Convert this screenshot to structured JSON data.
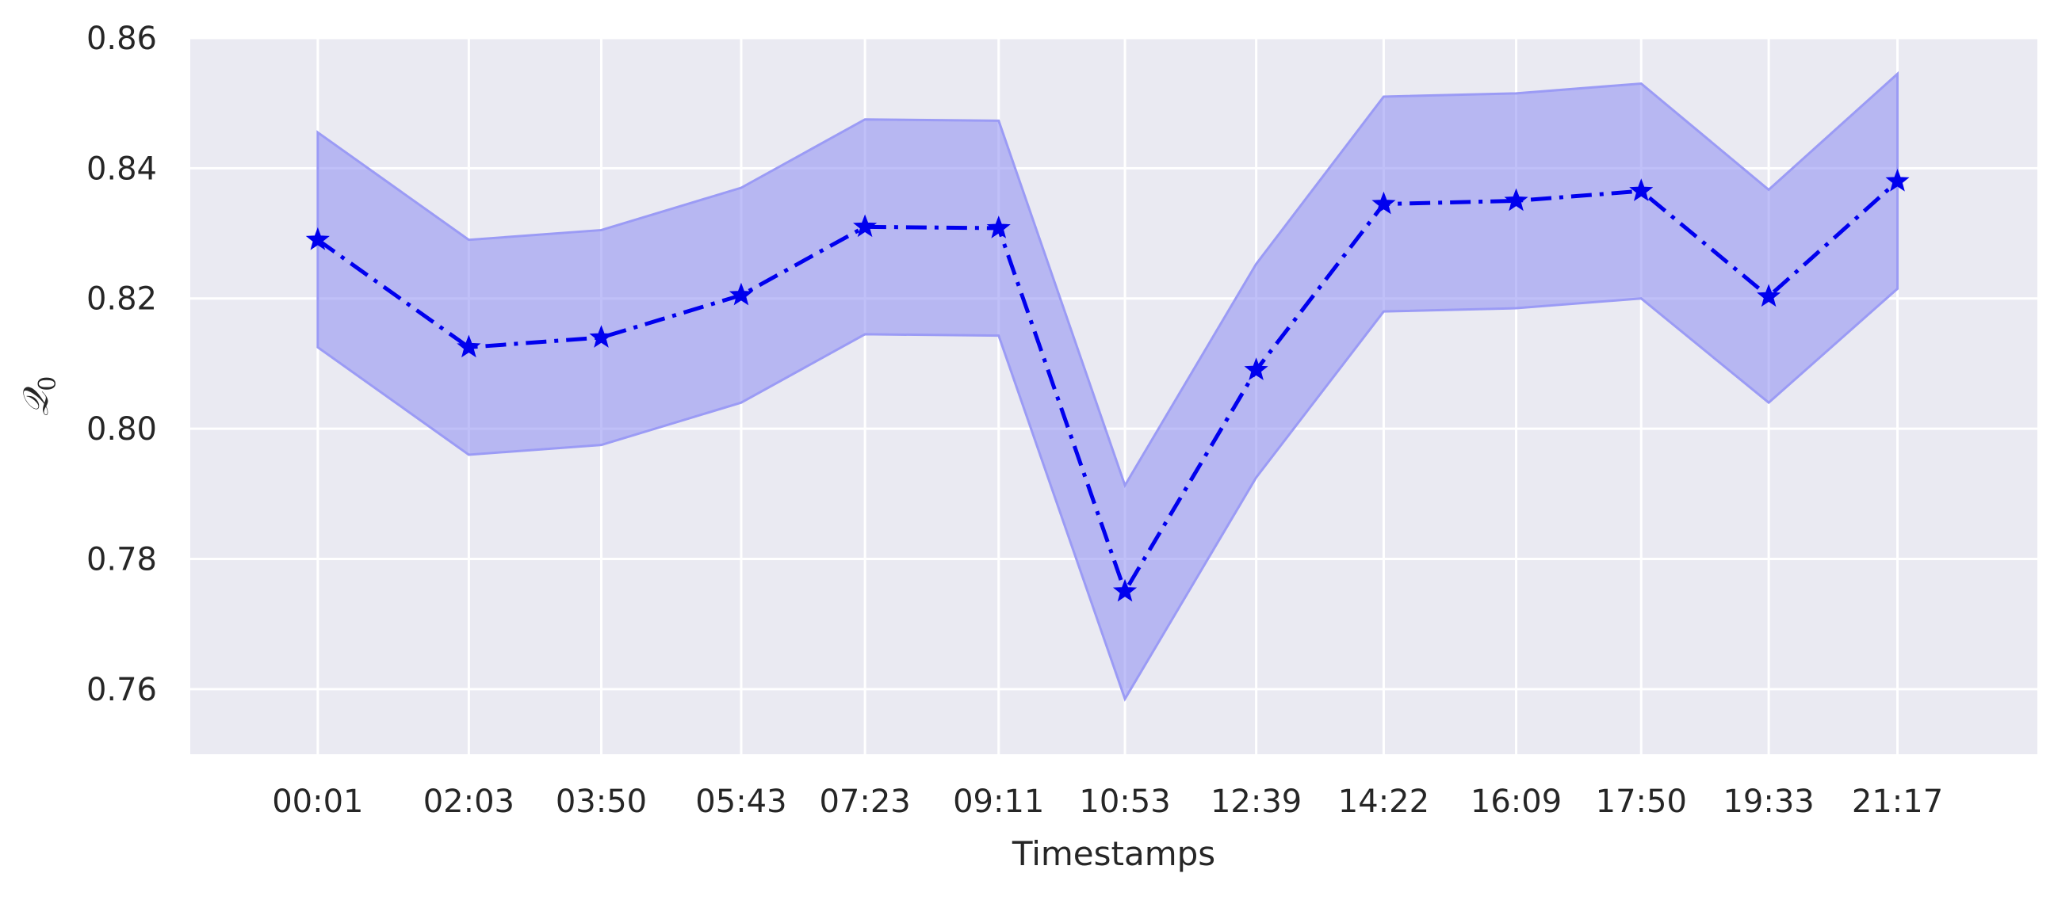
{
  "chart_data": {
    "type": "line",
    "title": "",
    "xlabel": "Timestamps",
    "ylabel": "𝒬",
    "ylabel_sub": "0",
    "categories": [
      "00:01",
      "02:03",
      "03:50",
      "05:43",
      "07:23",
      "09:11",
      "10:53",
      "12:39",
      "14:22",
      "16:09",
      "17:50",
      "19:33",
      "21:17"
    ],
    "x_minutes": [
      1,
      123,
      230,
      343,
      443,
      551,
      653,
      759,
      862,
      969,
      1070,
      1173,
      1277
    ],
    "series": [
      {
        "values": [
          0.829,
          0.8125,
          0.814,
          0.8205,
          0.831,
          0.8308,
          0.775,
          0.809,
          0.8345,
          0.835,
          0.8365,
          0.8203,
          0.838
        ],
        "upper": [
          0.8455,
          0.829,
          0.8305,
          0.837,
          0.8475,
          0.8473,
          0.7913,
          0.8253,
          0.851,
          0.8515,
          0.853,
          0.8367,
          0.8545
        ],
        "lower": [
          0.8125,
          0.796,
          0.7975,
          0.804,
          0.8145,
          0.8143,
          0.7585,
          0.7925,
          0.818,
          0.8185,
          0.82,
          0.804,
          0.8215
        ],
        "line_style": "dash-dot",
        "marker": "star"
      }
    ],
    "ylim": [
      0.75,
      0.86
    ],
    "yticks": [
      0.76,
      0.78,
      0.8,
      0.82,
      0.84,
      0.86
    ],
    "ytick_labels": [
      "0.76",
      "0.78",
      "0.80",
      "0.82",
      "0.84",
      "0.86"
    ],
    "grid": true,
    "colors": {
      "line": "#0000ee",
      "band_fill": "#8c8cf2",
      "band_edge": "#9b9bf5",
      "plot_bg": "#eaeaf2",
      "grid": "#ffffff"
    }
  }
}
